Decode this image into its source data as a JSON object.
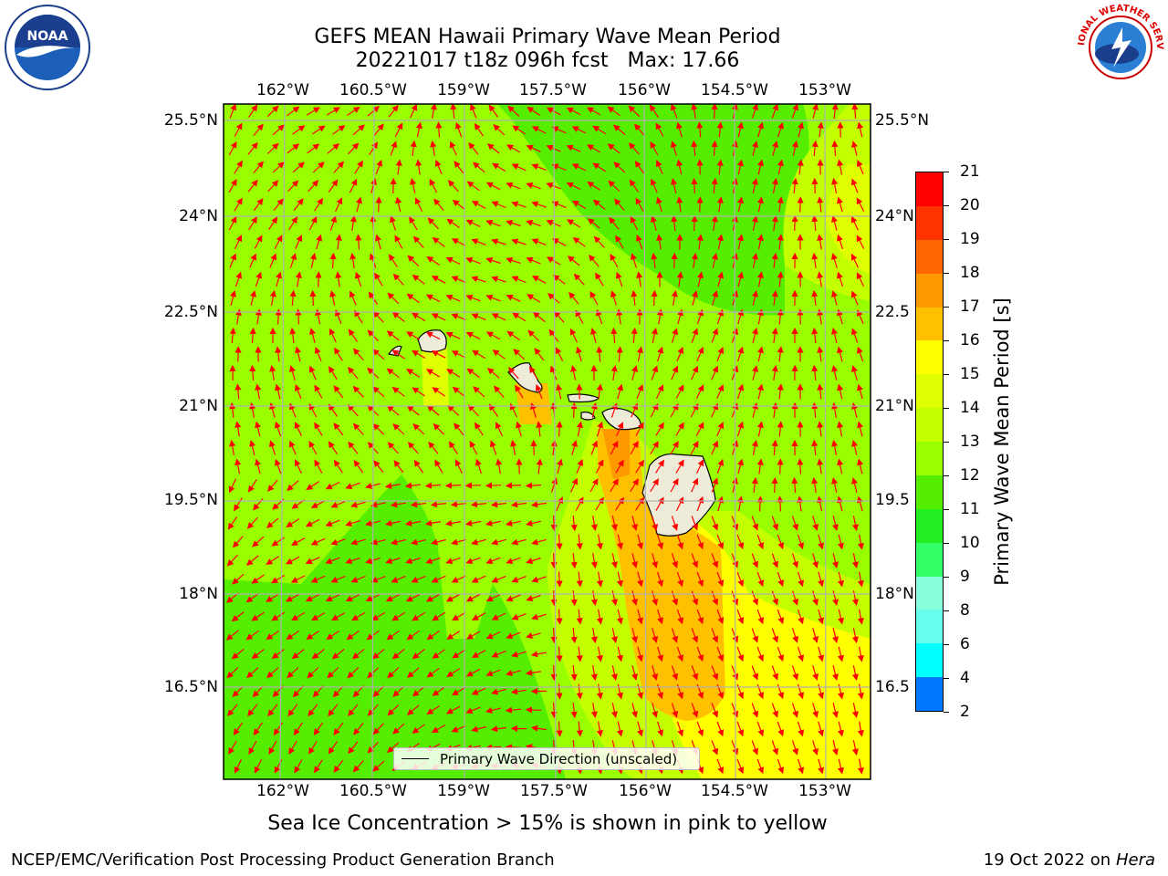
{
  "header": {
    "title_line1": "GEFS MEAN Hawaii Primary Wave Mean Period",
    "title_line2": "20221017 t18z 096h fcst   Max: 17.66"
  },
  "logos": {
    "left": "noaa-logo",
    "left_text": "NOAA",
    "right": "nws-logo",
    "right_text": "NATIONAL WEATHER SERVICE"
  },
  "map": {
    "lon_labels": [
      "162°W",
      "160.5°W",
      "159°W",
      "157.5°W",
      "156°W",
      "154.5°W",
      "153°W"
    ],
    "lat_labels": [
      "25.5°N",
      "24°N",
      "22.5°N",
      "21°N",
      "19.5°N",
      "18°N",
      "16.5°N"
    ],
    "lat_labels_right": [
      "25.5°N",
      "24°N",
      "22.5",
      "21°N",
      "19.5",
      "18°N",
      "16.5"
    ],
    "legend_label": "Primary Wave Direction (unscaled)",
    "arrow_color": "#ff0000",
    "land_color": "#eeebd8"
  },
  "colorbar": {
    "label": "Primary Wave Mean Period [s]",
    "ticks": [
      "21",
      "20",
      "19",
      "18",
      "17",
      "16",
      "15",
      "14",
      "13",
      "12",
      "11",
      "10",
      "9",
      "8",
      "6",
      "4",
      "2"
    ],
    "colors": [
      "#ff0000",
      "#ff3300",
      "#ff6600",
      "#ff9900",
      "#ffc000",
      "#ffff00",
      "#e0ff00",
      "#c4ff00",
      "#99ff00",
      "#55ee00",
      "#22ee22",
      "#33ff66",
      "#88ffdd",
      "#66ffee",
      "#00ffff",
      "#0077ff",
      "#0000ff"
    ]
  },
  "notes": {
    "ice": "Sea Ice Concentration > 15% is shown in pink to yellow"
  },
  "footer": {
    "left": "NCEP/EMC/Verification Post Processing Product Generation Branch",
    "right_prefix": "19 Oct 2022 on ",
    "right_host": "Hera"
  }
}
